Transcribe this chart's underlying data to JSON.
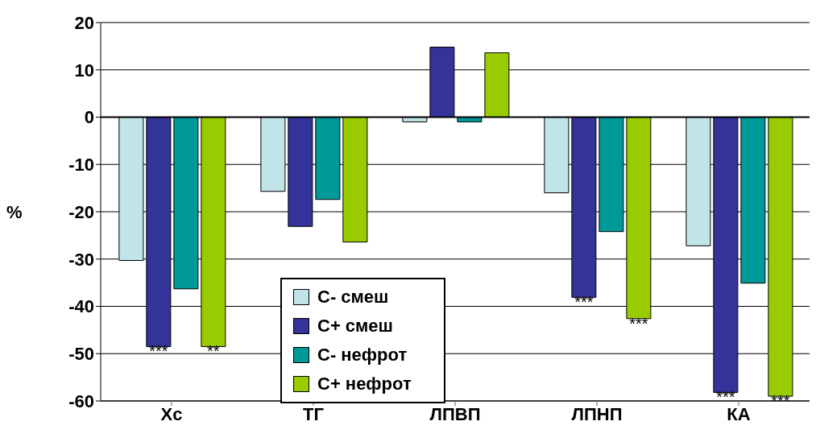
{
  "chart_data": {
    "type": "bar",
    "ylabel": "%",
    "categories": [
      "Хс",
      "ТГ",
      "ЛПВП",
      "ЛПНП",
      "КА"
    ],
    "series": [
      {
        "name": "С- смеш",
        "color": "#c0e4e8",
        "values": [
          -30.3,
          -15.7,
          -1,
          -16,
          -27.2
        ]
      },
      {
        "name": "С+ смеш",
        "color": "#333399",
        "values": [
          -48.5,
          -23.1,
          14.8,
          -38.1,
          -58.2
        ]
      },
      {
        "name": "С- нефрот",
        "color": "#009999",
        "values": [
          -36.3,
          -17.4,
          -1,
          -24.2,
          -35.1
        ]
      },
      {
        "name": "С+ нефрот",
        "color": "#99cc00",
        "values": [
          -48.5,
          -26.4,
          13.6,
          -42.6,
          -59
        ]
      }
    ],
    "ylim": [
      -60,
      20
    ],
    "yticks": [
      -60,
      -50,
      -40,
      -30,
      -20,
      -10,
      0,
      10,
      20
    ],
    "grid": "y",
    "legend": "bottom",
    "annotations": [
      {
        "text": "***",
        "x": "Хс",
        "y": -48.5
      },
      {
        "text": "***",
        "x": "ЛПНП",
        "y": -38.1
      },
      {
        "text": "***",
        "x": "КА",
        "y": -58.2
      },
      {
        "text": "**",
        "x": "Хс",
        "y": -48.5
      },
      {
        "text": "***",
        "y": -42.6
      },
      {
        "text": "***",
        "x": "КА",
        "y": -59
      }
    ]
  }
}
